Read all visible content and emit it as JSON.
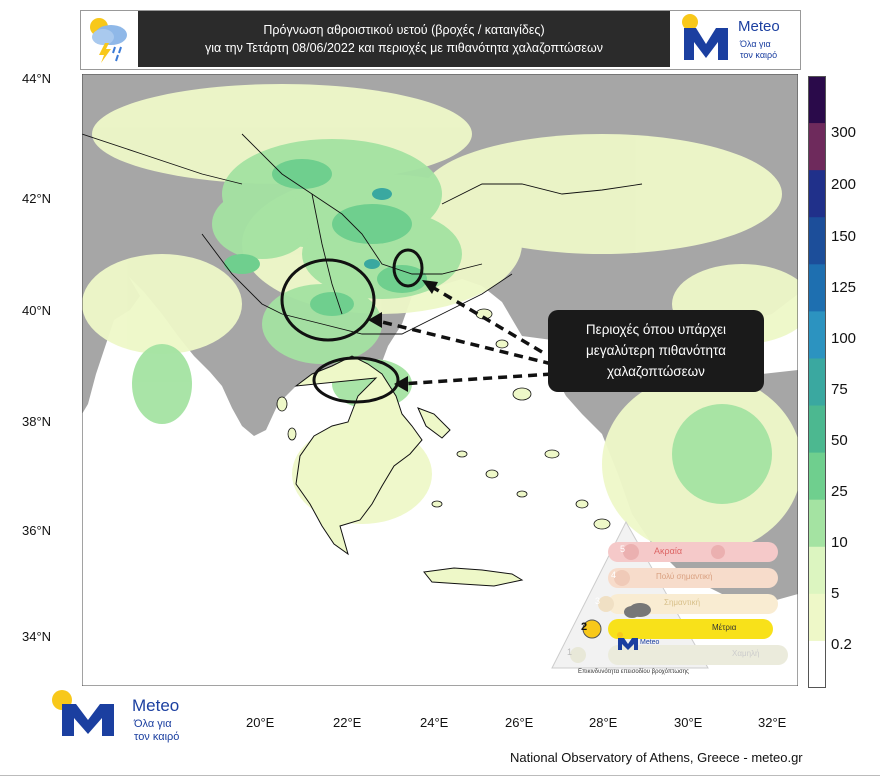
{
  "header": {
    "title_line1": "Πρόγνωση αθροιστικού υετού (βροχές / καταιγίδες)",
    "title_line2": "για την Τετάρτη 08/06/2022 και περιοχές με πιθανότητα χαλαζοπτώσεων",
    "logo_text": "Meteo",
    "logo_tagline_1": "Όλα για",
    "logo_tagline_2": "τον καιρό"
  },
  "axes": {
    "lat_labels": [
      "44°N",
      "42°N",
      "40°N",
      "38°N",
      "36°N",
      "34°N"
    ],
    "lon_labels": [
      "20°E",
      "22°E",
      "24°E",
      "26°E",
      "28°E",
      "30°E",
      "32°E"
    ]
  },
  "colorbar": {
    "labels": [
      "300",
      "200",
      "150",
      "125",
      "100",
      "75",
      "50",
      "25",
      "10",
      "5",
      "0.2"
    ],
    "colors": [
      "#2a0a4a",
      "#6e2a5c",
      "#20308a",
      "#1c4e9a",
      "#1e6fb0",
      "#2c93c0",
      "#3aa8a0",
      "#4cb890",
      "#6fcf8e",
      "#a4e3a2",
      "#dcf5c0",
      "#eef8c8",
      "#ffffff"
    ]
  },
  "callout": {
    "line1": "Περιοχές όπου υπάρχει",
    "line2": "μεγαλύτερη πιθανότητα",
    "line3": "χαλαζοπτώσεων"
  },
  "warning_pyramid": {
    "levels": [
      {
        "number": "5",
        "label": "Ακραία"
      },
      {
        "number": "4",
        "label": "Πολύ σημαντική"
      },
      {
        "number": "3",
        "label": "Σημαντική"
      },
      {
        "number": "2",
        "label": "Μέτρια"
      },
      {
        "number": "1",
        "label": "Χαμηλή"
      }
    ],
    "active_level": "2",
    "logo_text": "Meteo",
    "caption": "Επικινδυνότητα επεισοδίου βροχόπτωσης"
  },
  "footer": {
    "logo_text": "Meteo",
    "tagline_1": "Όλα για",
    "tagline_2": "τον καιρό",
    "credit": "National Observatory of Athens, Greece - meteo.gr"
  },
  "map_colors": {
    "sea": "#ffffff",
    "land_no_rain": "#a6a6a6",
    "light_rain": "#eef8c8",
    "moderate_rain": "#a4e3a2",
    "heavier_rain": "#6fcf8e",
    "heavy_rain": "#3aa8a0",
    "borders": "#111111",
    "accent_yellow": "#f8c81a",
    "accent_blue": "#1b3fa0"
  }
}
